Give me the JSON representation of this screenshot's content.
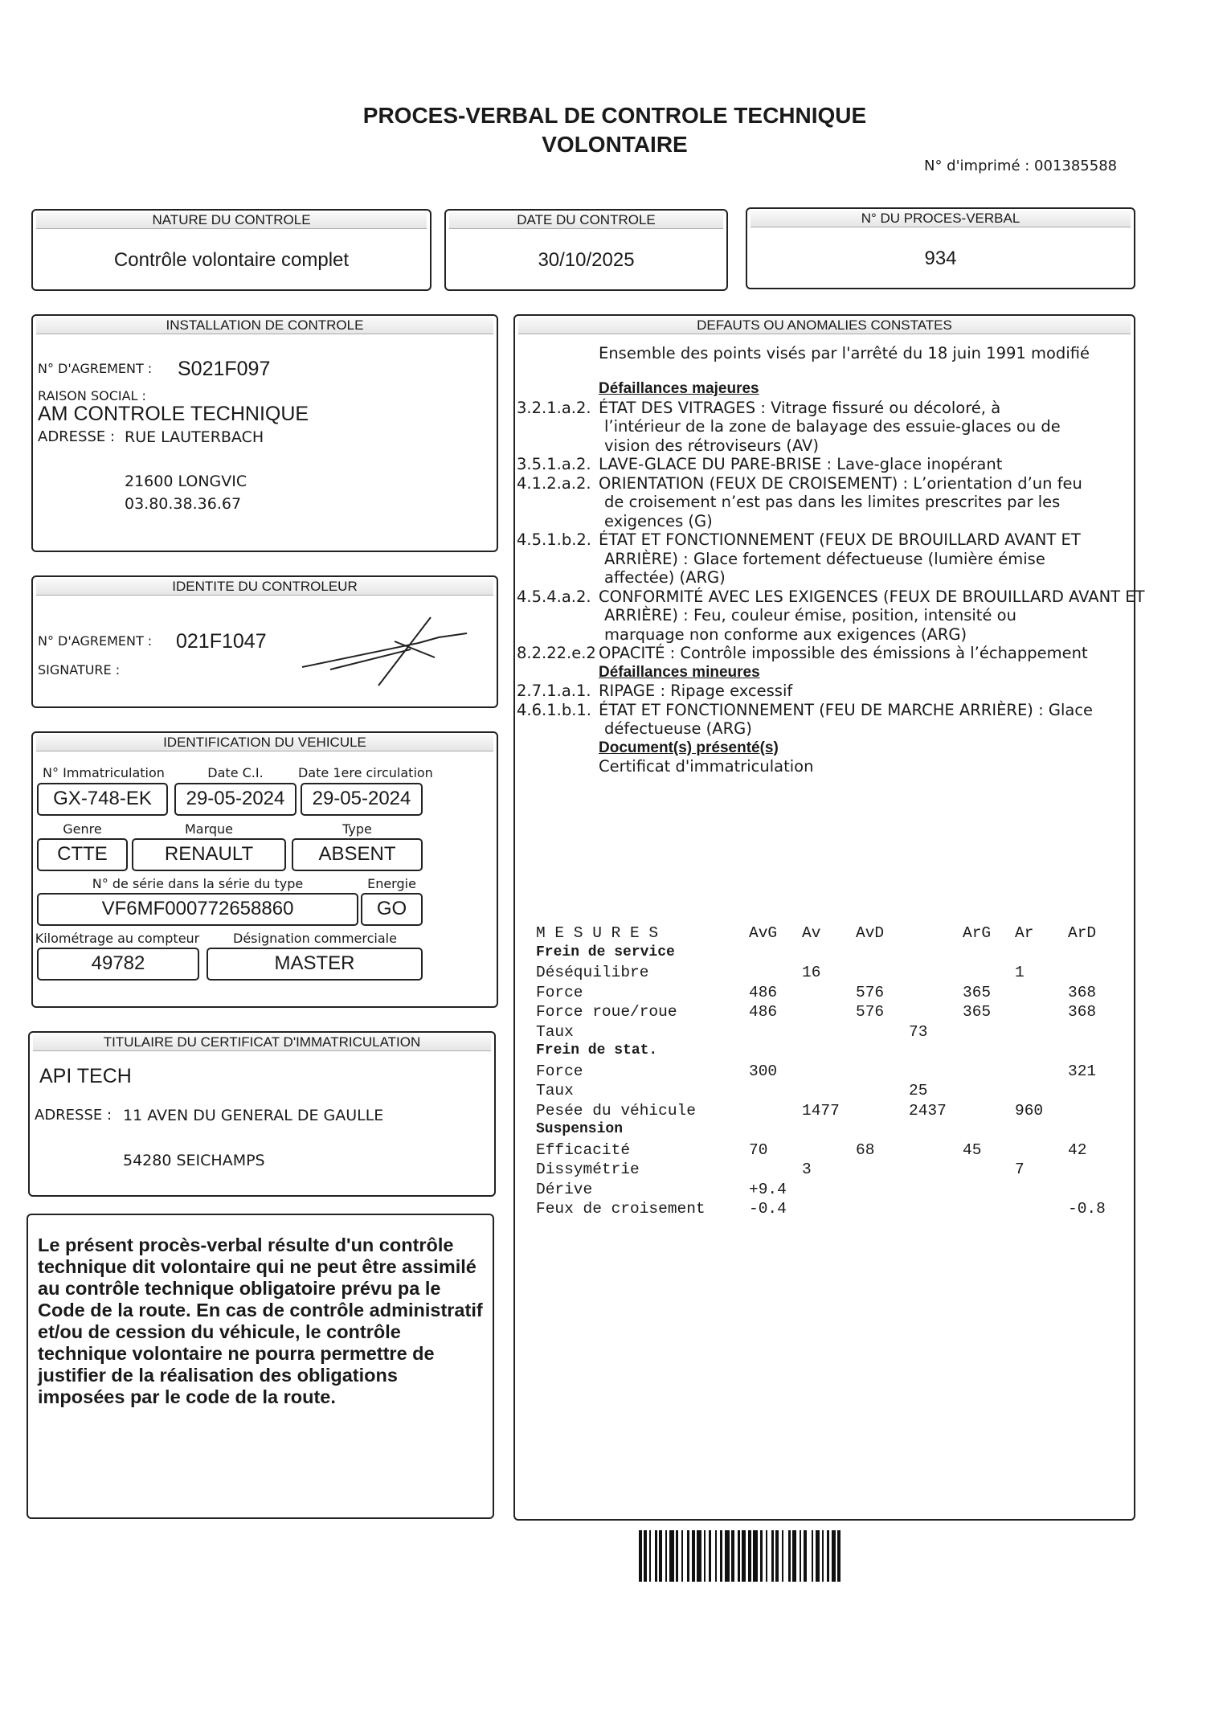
{
  "title": {
    "line1": "PROCES-VERBAL DE CONTROLE TECHNIQUE",
    "line2": "VOLONTAIRE",
    "imprime": "N° d'imprimé : 001385588"
  },
  "nature": {
    "header": "NATURE DU CONTROLE",
    "value": "Contrôle volontaire complet"
  },
  "date": {
    "header": "DATE DU CONTROLE",
    "value": "30/10/2025"
  },
  "pv": {
    "header": "N° DU PROCES-VERBAL",
    "value": "934"
  },
  "installation": {
    "header": "INSTALLATION DE CONTROLE",
    "agrement_label": "N° D'AGREMENT :",
    "agrement": "S021F097",
    "raison_label": "RAISON SOCIAL :",
    "raison": "AM CONTROLE TECHNIQUE",
    "adresse_label": "ADRESSE :",
    "adresse": "RUE LAUTERBACH",
    "ville": "21600 LONGVIC",
    "tel": "03.80.38.36.67"
  },
  "controleur": {
    "header": "IDENTITE DU CONTROLEUR",
    "agrement_label": "N° D'AGREMENT :",
    "agrement": "021F1047",
    "signature_label": "SIGNATURE :"
  },
  "vehicule": {
    "header": "IDENTIFICATION DU VEHICULE",
    "immat_label": "N° Immatriculation",
    "immat": "GX-748-EK",
    "date_ci_label": "Date C.I.",
    "date_ci": "29-05-2024",
    "date_circ_label": "Date 1ere circulation",
    "date_circ": "29-05-2024",
    "genre_label": "Genre",
    "genre": "CTTE",
    "marque_label": "Marque",
    "marque": "RENAULT",
    "type_label": "Type",
    "type": "ABSENT",
    "serie_label": "N° de série dans la série du type",
    "serie": "VF6MF000772658860",
    "energie_label": "Energie",
    "energie": "GO",
    "km_label": "Kilométrage au compteur",
    "km": "49782",
    "designation_label": "Désignation commerciale",
    "designation": "MASTER"
  },
  "titulaire": {
    "header": "TITULAIRE DU CERTIFICAT D'IMMATRICULATION",
    "nom": "API TECH",
    "adresse_label": "ADRESSE :",
    "adresse": "11 AVEN DU GENERAL DE GAULLE",
    "ville": "54280 SEICHAMPS"
  },
  "notice": "Le présent procès-verbal résulte d'un contrôle technique dit volontaire qui ne peut être assimilé au contrôle technique obligatoire prévu pa le Code de la route. En cas de contrôle administratif et/ou de cession du véhicule, le contrôle technique volontaire ne pourra permettre de justifier de la réalisation des obligations imposées par le code de la route.",
  "defauts": {
    "header": "DEFAUTS OU ANOMALIES CONSTATES",
    "intro": "Ensemble des points visés par l'arrêté du 18 juin 1991 modifié",
    "majeures_label": "Défaillances majeures",
    "majeures": [
      {
        "code": "3.2.1.a.2.",
        "lines": [
          "ÉTAT DES VITRAGES : Vitrage fissuré ou décoloré, à",
          "l’intérieur de la zone de balayage des essuie-glaces ou de",
          "vision des rétroviseurs (AV)"
        ]
      },
      {
        "code": "3.5.1.a.2.",
        "lines": [
          "LAVE-GLACE DU PARE-BRISE : Lave-glace inopérant"
        ]
      },
      {
        "code": "4.1.2.a.2.",
        "lines": [
          "ORIENTATION (FEUX DE CROISEMENT) : L’orientation d’un feu",
          "de croisement n’est pas dans les limites prescrites par les",
          "exigences (G)"
        ]
      },
      {
        "code": "4.5.1.b.2.",
        "lines": [
          "ÉTAT ET FONCTIONNEMENT (FEUX DE BROUILLARD AVANT ET",
          "ARRIÈRE) : Glace fortement défectueuse (lumière émise",
          "affectée) (ARG)"
        ]
      },
      {
        "code": "4.5.4.a.2.",
        "lines": [
          "CONFORMITÉ AVEC LES EXIGENCES (FEUX DE BROUILLARD AVANT ET",
          "ARRIÈRE) : Feu, couleur émise, position, intensité ou",
          "marquage non conforme aux exigences (ARG)"
        ]
      },
      {
        "code": "8.2.22.e.2",
        "lines": [
          "OPACITÉ : Contrôle impossible des émissions à l’échappement"
        ]
      }
    ],
    "mineures_label": "Défaillances mineures",
    "mineures": [
      {
        "code": "2.7.1.a.1.",
        "lines": [
          "RIPAGE : Ripage excessif"
        ]
      },
      {
        "code": "4.6.1.b.1.",
        "lines": [
          "ÉTAT ET FONCTIONNEMENT (FEU DE MARCHE ARRIÈRE) : Glace",
          "défectueuse (ARG)"
        ]
      }
    ],
    "documents_label": "Document(s) présenté(s)",
    "documents": "Certificat d'immatriculation"
  },
  "mesures": {
    "title": "M E S U R E S",
    "columns": [
      "AvG",
      "Av",
      "AvD",
      "",
      "ArG",
      "Ar",
      "ArD"
    ],
    "rows": [
      {
        "label": "Frein de service",
        "section": true,
        "values": [
          "",
          "",
          "",
          "",
          "",
          "",
          ""
        ]
      },
      {
        "label": "Déséquilibre",
        "values": [
          "",
          "16",
          "",
          "",
          "",
          "1",
          ""
        ]
      },
      {
        "label": "Force",
        "values": [
          "486",
          "",
          "576",
          "",
          "365",
          "",
          "368"
        ]
      },
      {
        "label": "Force roue/roue",
        "values": [
          "486",
          "",
          "576",
          "",
          "365",
          "",
          "368"
        ]
      },
      {
        "label": "Taux",
        "values": [
          "",
          "",
          "",
          "73",
          "",
          "",
          ""
        ]
      },
      {
        "label": "Frein de stat.",
        "section": true,
        "values": [
          "",
          "",
          "",
          "",
          "",
          "",
          ""
        ]
      },
      {
        "label": "Force",
        "values": [
          "300",
          "",
          "",
          "",
          "",
          "",
          "321"
        ]
      },
      {
        "label": "Taux",
        "values": [
          "",
          "",
          "",
          "25",
          "",
          "",
          ""
        ]
      },
      {
        "label": "Pesée du véhicule",
        "values": [
          "",
          "1477",
          "",
          "2437",
          "",
          "960",
          ""
        ]
      },
      {
        "label": "Suspension",
        "section": true,
        "values": [
          "",
          "",
          "",
          "",
          "",
          "",
          ""
        ]
      },
      {
        "label": "Efficacité",
        "values": [
          "70",
          "",
          "68",
          "",
          "45",
          "",
          "42"
        ]
      },
      {
        "label": "Dissymétrie",
        "values": [
          "",
          "3",
          "",
          "",
          "",
          "7",
          ""
        ]
      },
      {
        "label": "Dérive",
        "values": [
          "+9.4",
          "",
          "",
          "",
          "",
          "",
          ""
        ]
      },
      {
        "label": "Feux de croisement",
        "values": [
          "-0.4",
          "",
          "",
          "",
          "",
          "",
          "-0.8"
        ]
      }
    ]
  }
}
